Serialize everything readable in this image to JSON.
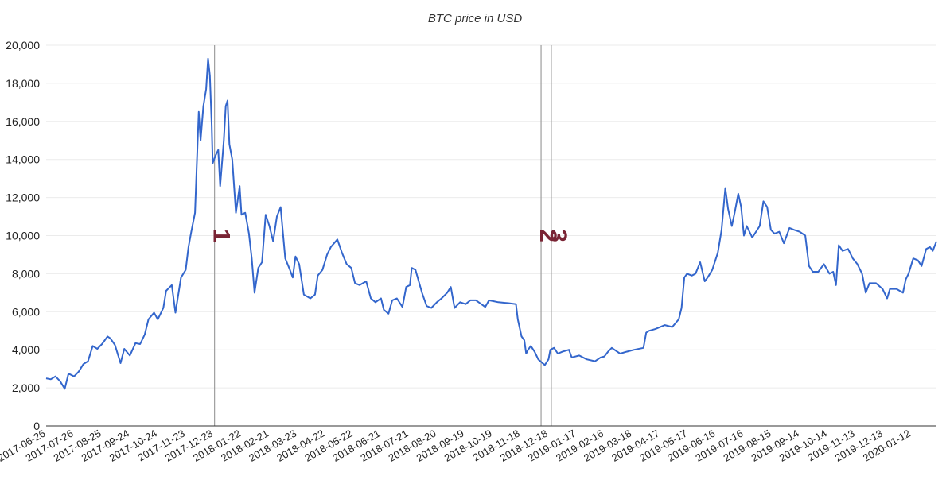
{
  "chart_data": {
    "type": "line",
    "title": "BTC price in USD",
    "xlabel": "",
    "ylabel": "",
    "x_range": [
      "2017-06-26",
      "2020-02-08"
    ],
    "ylim": [
      0,
      20000
    ],
    "yticks": [
      0,
      2000,
      4000,
      6000,
      8000,
      10000,
      12000,
      14000,
      16000,
      18000,
      20000
    ],
    "ytick_labels": [
      "0",
      "2,000",
      "4,000",
      "6,000",
      "8,000",
      "10,000",
      "12,000",
      "14,000",
      "16,000",
      "18,000",
      "20,000"
    ],
    "xtick_labels": [
      "2017-06-26",
      "2017-07-26",
      "2017-08-25",
      "2017-09-24",
      "2017-10-24",
      "2017-11-23",
      "2017-12-23",
      "2018-01-22",
      "2018-02-21",
      "2018-03-23",
      "2018-04-22",
      "2018-05-22",
      "2018-06-21",
      "2018-07-21",
      "2018-08-20",
      "2018-09-19",
      "2018-10-19",
      "2018-11-18",
      "2018-12-18",
      "2019-01-17",
      "2019-02-16",
      "2019-03-18",
      "2019-04-17",
      "2019-05-17",
      "2019-06-16",
      "2019-07-16",
      "2019-08-15",
      "2019-09-14",
      "2019-10-14",
      "2019-11-13",
      "2019-12-13",
      "2020-01-12"
    ],
    "grid": true,
    "legend": "none",
    "series": [
      {
        "color": "#3366cc",
        "points": [
          [
            "2017-06-26",
            2500
          ],
          [
            "2017-07-01",
            2450
          ],
          [
            "2017-07-06",
            2600
          ],
          [
            "2017-07-11",
            2350
          ],
          [
            "2017-07-16",
            1950
          ],
          [
            "2017-07-20",
            2750
          ],
          [
            "2017-07-26",
            2600
          ],
          [
            "2017-07-31",
            2850
          ],
          [
            "2017-08-05",
            3250
          ],
          [
            "2017-08-10",
            3400
          ],
          [
            "2017-08-15",
            4200
          ],
          [
            "2017-08-20",
            4050
          ],
          [
            "2017-08-25",
            4300
          ],
          [
            "2017-08-31",
            4700
          ],
          [
            "2017-09-03",
            4600
          ],
          [
            "2017-09-08",
            4250
          ],
          [
            "2017-09-14",
            3300
          ],
          [
            "2017-09-18",
            4050
          ],
          [
            "2017-09-24",
            3700
          ],
          [
            "2017-09-30",
            4350
          ],
          [
            "2017-10-05",
            4300
          ],
          [
            "2017-10-10",
            4800
          ],
          [
            "2017-10-14",
            5600
          ],
          [
            "2017-10-20",
            5950
          ],
          [
            "2017-10-24",
            5600
          ],
          [
            "2017-10-30",
            6200
          ],
          [
            "2017-11-02",
            7100
          ],
          [
            "2017-11-08",
            7400
          ],
          [
            "2017-11-12",
            5950
          ],
          [
            "2017-11-18",
            7800
          ],
          [
            "2017-11-23",
            8200
          ],
          [
            "2017-11-26",
            9400
          ],
          [
            "2017-11-29",
            10200
          ],
          [
            "2017-12-03",
            11200
          ],
          [
            "2017-12-07",
            16500
          ],
          [
            "2017-12-09",
            15000
          ],
          [
            "2017-12-12",
            16800
          ],
          [
            "2017-12-15",
            17700
          ],
          [
            "2017-12-17",
            19300
          ],
          [
            "2017-12-19",
            18400
          ],
          [
            "2017-12-21",
            15800
          ],
          [
            "2017-12-22",
            13800
          ],
          [
            "2017-12-25",
            14200
          ],
          [
            "2017-12-28",
            14500
          ],
          [
            "2017-12-30",
            12600
          ],
          [
            "2018-01-03",
            15000
          ],
          [
            "2018-01-05",
            16800
          ],
          [
            "2018-01-07",
            17100
          ],
          [
            "2018-01-09",
            14800
          ],
          [
            "2018-01-12",
            14000
          ],
          [
            "2018-01-16",
            11200
          ],
          [
            "2018-01-20",
            12600
          ],
          [
            "2018-01-22",
            11100
          ],
          [
            "2018-01-26",
            11200
          ],
          [
            "2018-01-30",
            10100
          ],
          [
            "2018-02-02",
            8800
          ],
          [
            "2018-02-05",
            7000
          ],
          [
            "2018-02-09",
            8300
          ],
          [
            "2018-02-13",
            8600
          ],
          [
            "2018-02-17",
            11100
          ],
          [
            "2018-02-21",
            10500
          ],
          [
            "2018-02-25",
            9700
          ],
          [
            "2018-03-01",
            11000
          ],
          [
            "2018-03-05",
            11500
          ],
          [
            "2018-03-10",
            8800
          ],
          [
            "2018-03-15",
            8200
          ],
          [
            "2018-03-18",
            7800
          ],
          [
            "2018-03-21",
            8900
          ],
          [
            "2018-03-25",
            8500
          ],
          [
            "2018-03-30",
            6900
          ],
          [
            "2018-04-06",
            6700
          ],
          [
            "2018-04-11",
            6900
          ],
          [
            "2018-04-14",
            7900
          ],
          [
            "2018-04-19",
            8200
          ],
          [
            "2018-04-24",
            9000
          ],
          [
            "2018-04-28",
            9400
          ],
          [
            "2018-05-05",
            9800
          ],
          [
            "2018-05-10",
            9100
          ],
          [
            "2018-05-15",
            8500
          ],
          [
            "2018-05-20",
            8300
          ],
          [
            "2018-05-24",
            7500
          ],
          [
            "2018-05-29",
            7400
          ],
          [
            "2018-06-05",
            7600
          ],
          [
            "2018-06-10",
            6700
          ],
          [
            "2018-06-15",
            6500
          ],
          [
            "2018-06-21",
            6700
          ],
          [
            "2018-06-24",
            6100
          ],
          [
            "2018-06-29",
            5900
          ],
          [
            "2018-07-03",
            6600
          ],
          [
            "2018-07-08",
            6700
          ],
          [
            "2018-07-14",
            6250
          ],
          [
            "2018-07-18",
            7300
          ],
          [
            "2018-07-22",
            7400
          ],
          [
            "2018-07-24",
            8300
          ],
          [
            "2018-07-28",
            8200
          ],
          [
            "2018-08-04",
            7000
          ],
          [
            "2018-08-09",
            6300
          ],
          [
            "2018-08-14",
            6200
          ],
          [
            "2018-08-20",
            6500
          ],
          [
            "2018-08-25",
            6700
          ],
          [
            "2018-08-31",
            7000
          ],
          [
            "2018-09-04",
            7300
          ],
          [
            "2018-09-08",
            6200
          ],
          [
            "2018-09-14",
            6500
          ],
          [
            "2018-09-20",
            6400
          ],
          [
            "2018-09-25",
            6600
          ],
          [
            "2018-10-01",
            6600
          ],
          [
            "2018-10-11",
            6250
          ],
          [
            "2018-10-15",
            6600
          ],
          [
            "2018-10-25",
            6500
          ],
          [
            "2018-11-05",
            6450
          ],
          [
            "2018-11-13",
            6400
          ],
          [
            "2018-11-15",
            5600
          ],
          [
            "2018-11-19",
            4700
          ],
          [
            "2018-11-22",
            4500
          ],
          [
            "2018-11-24",
            3800
          ],
          [
            "2018-11-26",
            4000
          ],
          [
            "2018-11-29",
            4200
          ],
          [
            "2018-12-03",
            3900
          ],
          [
            "2018-12-07",
            3500
          ],
          [
            "2018-12-14",
            3200
          ],
          [
            "2018-12-18",
            3500
          ],
          [
            "2018-12-20",
            4000
          ],
          [
            "2018-12-24",
            4100
          ],
          [
            "2018-12-28",
            3800
          ],
          [
            "2019-01-02",
            3900
          ],
          [
            "2019-01-09",
            4000
          ],
          [
            "2019-01-12",
            3600
          ],
          [
            "2019-01-20",
            3700
          ],
          [
            "2019-01-28",
            3500
          ],
          [
            "2019-02-06",
            3400
          ],
          [
            "2019-02-12",
            3600
          ],
          [
            "2019-02-16",
            3650
          ],
          [
            "2019-02-20",
            3900
          ],
          [
            "2019-02-24",
            4100
          ],
          [
            "2019-03-05",
            3800
          ],
          [
            "2019-03-12",
            3900
          ],
          [
            "2019-03-20",
            4000
          ],
          [
            "2019-03-30",
            4100
          ],
          [
            "2019-04-02",
            4900
          ],
          [
            "2019-04-05",
            5000
          ],
          [
            "2019-04-12",
            5100
          ],
          [
            "2019-04-22",
            5300
          ],
          [
            "2019-04-30",
            5200
          ],
          [
            "2019-05-07",
            5600
          ],
          [
            "2019-05-10",
            6200
          ],
          [
            "2019-05-13",
            7800
          ],
          [
            "2019-05-16",
            8000
          ],
          [
            "2019-05-21",
            7900
          ],
          [
            "2019-05-25",
            8000
          ],
          [
            "2019-05-30",
            8600
          ],
          [
            "2019-06-04",
            7600
          ],
          [
            "2019-06-07",
            7800
          ],
          [
            "2019-06-12",
            8200
          ],
          [
            "2019-06-18",
            9100
          ],
          [
            "2019-06-22",
            10300
          ],
          [
            "2019-06-26",
            12500
          ],
          [
            "2019-06-29",
            11400
          ],
          [
            "2019-07-03",
            10500
          ],
          [
            "2019-07-06",
            11200
          ],
          [
            "2019-07-10",
            12200
          ],
          [
            "2019-07-13",
            11500
          ],
          [
            "2019-07-16",
            10000
          ],
          [
            "2019-07-19",
            10500
          ],
          [
            "2019-07-25",
            9900
          ],
          [
            "2019-08-02",
            10500
          ],
          [
            "2019-08-06",
            11800
          ],
          [
            "2019-08-10",
            11500
          ],
          [
            "2019-08-14",
            10300
          ],
          [
            "2019-08-18",
            10100
          ],
          [
            "2019-08-23",
            10200
          ],
          [
            "2019-08-28",
            9600
          ],
          [
            "2019-09-03",
            10400
          ],
          [
            "2019-09-08",
            10300
          ],
          [
            "2019-09-14",
            10200
          ],
          [
            "2019-09-20",
            10000
          ],
          [
            "2019-09-24",
            8400
          ],
          [
            "2019-09-28",
            8100
          ],
          [
            "2019-10-04",
            8100
          ],
          [
            "2019-10-10",
            8500
          ],
          [
            "2019-10-16",
            8000
          ],
          [
            "2019-10-20",
            8100
          ],
          [
            "2019-10-23",
            7400
          ],
          [
            "2019-10-26",
            9500
          ],
          [
            "2019-10-30",
            9200
          ],
          [
            "2019-11-05",
            9300
          ],
          [
            "2019-11-10",
            8800
          ],
          [
            "2019-11-15",
            8500
          ],
          [
            "2019-11-20",
            8000
          ],
          [
            "2019-11-24",
            7000
          ],
          [
            "2019-11-28",
            7500
          ],
          [
            "2019-12-05",
            7500
          ],
          [
            "2019-12-12",
            7200
          ],
          [
            "2019-12-17",
            6700
          ],
          [
            "2019-12-20",
            7200
          ],
          [
            "2019-12-27",
            7200
          ],
          [
            "2020-01-03",
            7000
          ],
          [
            "2020-01-06",
            7700
          ],
          [
            "2020-01-09",
            8000
          ],
          [
            "2020-01-14",
            8800
          ],
          [
            "2020-01-19",
            8700
          ],
          [
            "2020-01-23",
            8400
          ],
          [
            "2020-01-28",
            9300
          ],
          [
            "2020-02-01",
            9400
          ],
          [
            "2020-02-04",
            9200
          ],
          [
            "2020-02-08",
            9700
          ]
        ]
      }
    ],
    "annotations": [
      {
        "text": "1",
        "x": "2017-12-24",
        "y": 10000
      },
      {
        "text": "2",
        "x": "2018-12-10",
        "y": 10000
      },
      {
        "text": "3",
        "x": "2018-12-21",
        "y": 10000
      }
    ]
  }
}
